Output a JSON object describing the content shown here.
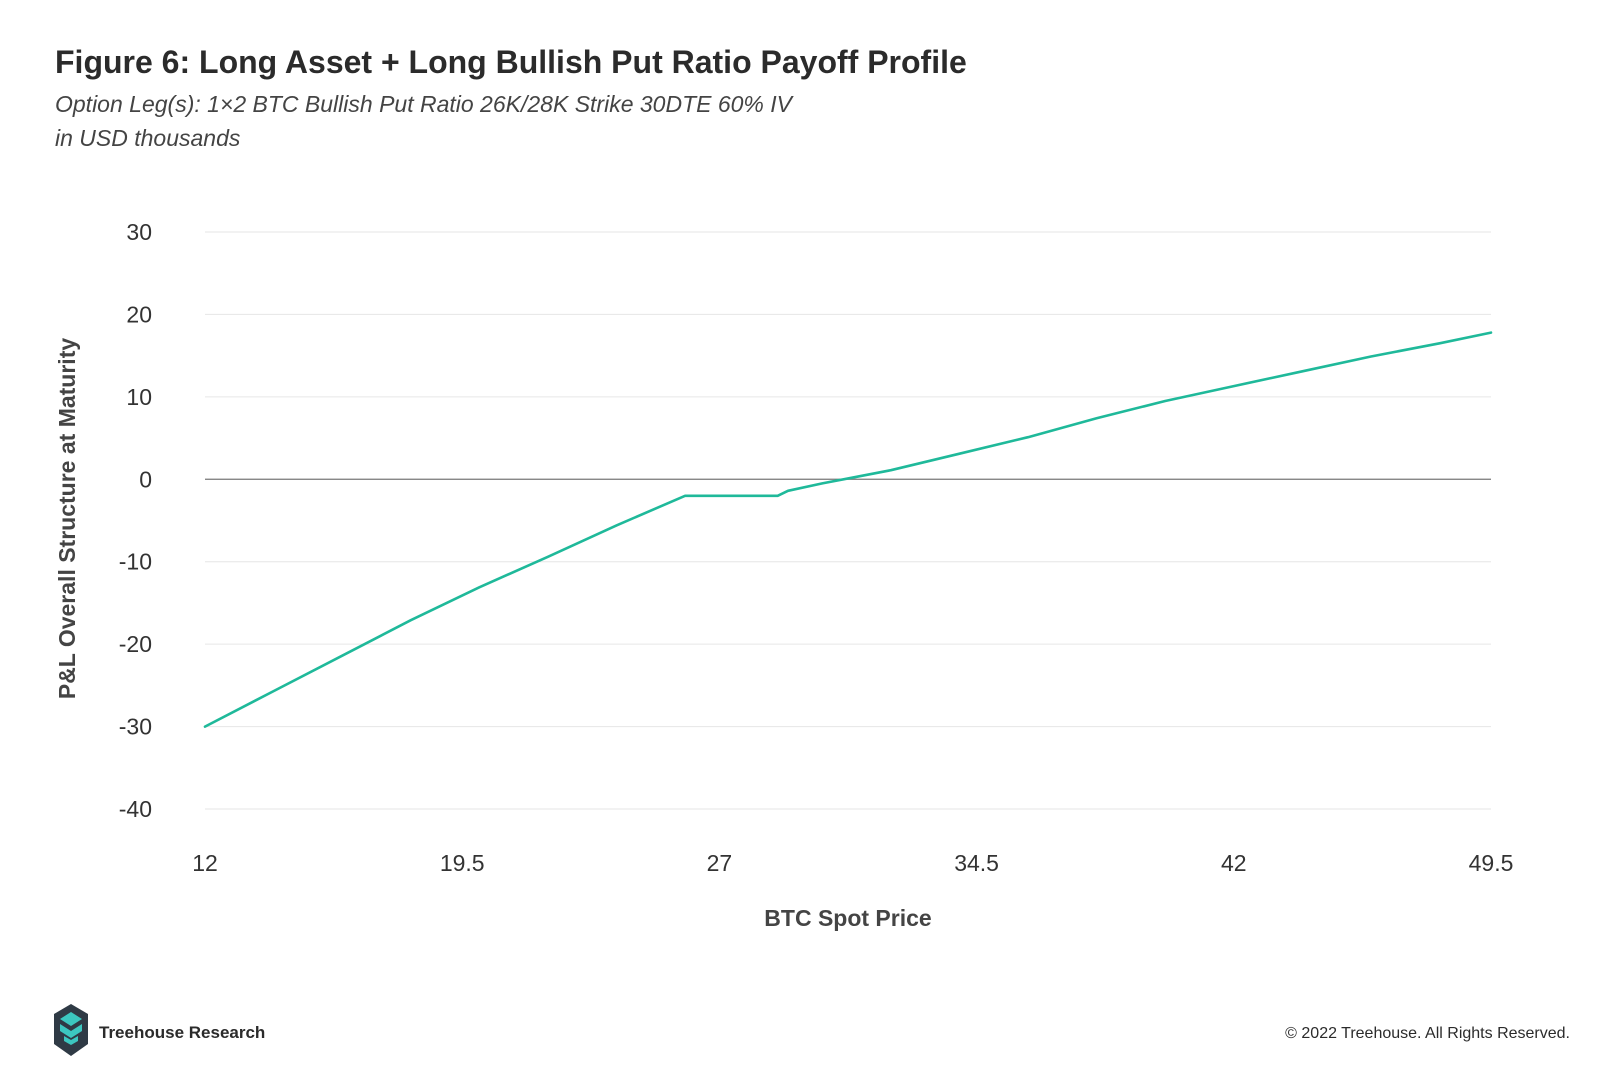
{
  "header": {
    "title": "Figure 6: Long Asset + Long Bullish Put Ratio Payoff Profile",
    "subtitle_1": "Option Leg(s): 1×2 BTC Bullish Put Ratio 26K/28K Strike 30DTE 60% IV",
    "subtitle_2": "in USD thousands"
  },
  "chart_data": {
    "type": "line",
    "title": "Figure 6: Long Asset + Long Bullish Put Ratio Payoff Profile",
    "subtitle": "Option Leg(s): 1×2 BTC Bullish Put Ratio 26K/28K Strike 30DTE 60% IV",
    "xlabel": "BTC Spot Price",
    "ylabel": "P&L Overall Structure at Maturity",
    "xlim": [
      12,
      49.5
    ],
    "ylim": [
      -40,
      30
    ],
    "x_ticks": [
      "12",
      "19.5",
      "27",
      "34.5",
      "42",
      "49.5"
    ],
    "x_tick_values": [
      12,
      19.5,
      27,
      34.5,
      42,
      49.5
    ],
    "y_ticks": [
      "30",
      "20",
      "10",
      "0",
      "-10",
      "-20",
      "-30",
      "-40"
    ],
    "y_tick_values": [
      30,
      20,
      10,
      0,
      -10,
      -20,
      -30,
      -40
    ],
    "grid": true,
    "legend": "none",
    "series": [
      {
        "color": "#1fb99a",
        "x": [
          12,
          14,
          16,
          18,
          20,
          22,
          24,
          26,
          26.7,
          27,
          28,
          28.7,
          29,
          30,
          31,
          32,
          34,
          36,
          38,
          40,
          42,
          44,
          46,
          48,
          49.5
        ],
        "y": [
          -30,
          -25.7,
          -21.4,
          -17.1,
          -13.1,
          -9.4,
          -5.6,
          -2,
          -2,
          -2,
          -2,
          -2,
          -1.4,
          -0.5,
          0.3,
          1.1,
          3.1,
          5.1,
          7.4,
          9.5,
          11.3,
          13.1,
          14.9,
          16.5,
          17.8
        ]
      }
    ]
  },
  "footer": {
    "brand": "Treehouse Research",
    "copyright": "© 2022 Treehouse. All Rights Reserved."
  },
  "colors": {
    "line": "#1fb99a",
    "grid": "#e6e6e6",
    "zero_line": "#777777",
    "logo_dark": "#2f3a45",
    "logo_teal": "#3cc7c0"
  },
  "icons": {
    "logo": "treehouse-logo-icon"
  }
}
